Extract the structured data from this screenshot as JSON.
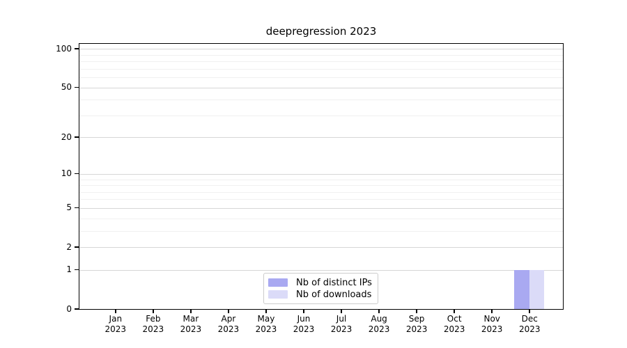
{
  "chart_data": {
    "type": "bar",
    "title": "deepregression 2023",
    "categories": [
      "Jan",
      "Feb",
      "Mar",
      "Apr",
      "May",
      "Jun",
      "Jul",
      "Aug",
      "Sep",
      "Oct",
      "Nov",
      "Dec"
    ],
    "year": "2023",
    "series": [
      {
        "name": "Nb of distinct IPs",
        "color": "#a9a9f1",
        "values": [
          0,
          0,
          0,
          0,
          0,
          0,
          0,
          0,
          0,
          0,
          0,
          1
        ]
      },
      {
        "name": "Nb of downloads",
        "color": "#dbdbf8",
        "values": [
          0,
          0,
          0,
          0,
          0,
          0,
          0,
          0,
          0,
          0,
          0,
          1
        ]
      }
    ],
    "xlabel": "",
    "ylabel": "",
    "y_axis": {
      "scale": "log1p",
      "tick_values": [
        0,
        1,
        2,
        5,
        10,
        20,
        50,
        100
      ],
      "tick_labels": [
        "0",
        "1",
        "2",
        "5",
        "10",
        "20",
        "50",
        "100"
      ],
      "minor_gridline_values": [
        3,
        4,
        6,
        7,
        8,
        9,
        30,
        40,
        60,
        70,
        80,
        90
      ],
      "range": [
        0,
        110
      ]
    },
    "grid": true,
    "legend_position": "bottom-center",
    "colors": {
      "major_grid": "#d6d6d6",
      "minor_grid": "#f0f0f0",
      "axis": "#000000",
      "background": "#ffffff"
    }
  }
}
